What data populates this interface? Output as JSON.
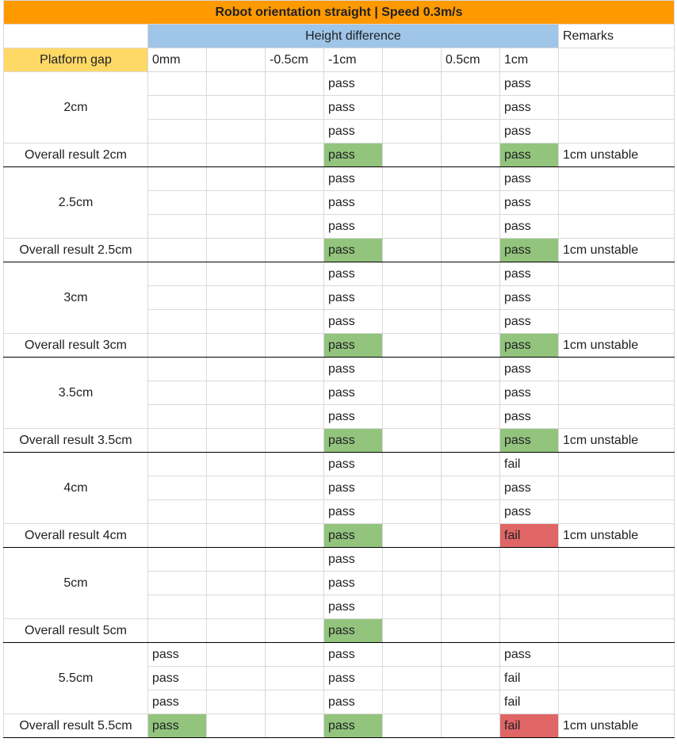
{
  "title": "Robot orientation straight | Speed 0.3m/s",
  "header": {
    "height_difference": "Height difference",
    "remarks": "Remarks",
    "platform_gap": "Platform gap",
    "columns": [
      "0mm",
      "",
      "-0.5cm",
      "-1cm",
      "",
      "0.5cm",
      "1cm"
    ]
  },
  "groups": [
    {
      "gap": "2cm",
      "rows": [
        [
          "",
          "",
          "",
          "pass",
          "",
          "",
          "pass"
        ],
        [
          "",
          "",
          "",
          "pass",
          "",
          "",
          "pass"
        ],
        [
          "",
          "",
          "",
          "pass",
          "",
          "",
          "pass"
        ]
      ],
      "overall": {
        "label": "Overall result 2cm",
        "cells": [
          "",
          "",
          "",
          "pass",
          "",
          "",
          "pass"
        ],
        "remark": "1cm unstable"
      }
    },
    {
      "gap": "2.5cm",
      "rows": [
        [
          "",
          "",
          "",
          "pass",
          "",
          "",
          "pass"
        ],
        [
          "",
          "",
          "",
          "pass",
          "",
          "",
          "pass"
        ],
        [
          "",
          "",
          "",
          "pass",
          "",
          "",
          "pass"
        ]
      ],
      "overall": {
        "label": "Overall result 2.5cm",
        "cells": [
          "",
          "",
          "",
          "pass",
          "",
          "",
          "pass"
        ],
        "remark": "1cm unstable"
      }
    },
    {
      "gap": "3cm",
      "rows": [
        [
          "",
          "",
          "",
          "pass",
          "",
          "",
          "pass"
        ],
        [
          "",
          "",
          "",
          "pass",
          "",
          "",
          "pass"
        ],
        [
          "",
          "",
          "",
          "pass",
          "",
          "",
          "pass"
        ]
      ],
      "overall": {
        "label": "Overall result 3cm",
        "cells": [
          "",
          "",
          "",
          "pass",
          "",
          "",
          "pass"
        ],
        "remark": "1cm unstable"
      }
    },
    {
      "gap": "3.5cm",
      "rows": [
        [
          "",
          "",
          "",
          "pass",
          "",
          "",
          "pass"
        ],
        [
          "",
          "",
          "",
          "pass",
          "",
          "",
          "pass"
        ],
        [
          "",
          "",
          "",
          "pass",
          "",
          "",
          "pass"
        ]
      ],
      "overall": {
        "label": "Overall result 3.5cm",
        "cells": [
          "",
          "",
          "",
          "pass",
          "",
          "",
          "pass"
        ],
        "remark": "1cm unstable"
      }
    },
    {
      "gap": "4cm",
      "rows": [
        [
          "",
          "",
          "",
          "pass",
          "",
          "",
          "fail"
        ],
        [
          "",
          "",
          "",
          "pass",
          "",
          "",
          "pass"
        ],
        [
          "",
          "",
          "",
          "pass",
          "",
          "",
          "pass"
        ]
      ],
      "overall": {
        "label": "Overall result 4cm",
        "cells": [
          "",
          "",
          "",
          "pass",
          "",
          "",
          "fail"
        ],
        "remark": "1cm unstable"
      }
    },
    {
      "gap": "5cm",
      "rows": [
        [
          "",
          "",
          "",
          "pass",
          "",
          "",
          ""
        ],
        [
          "",
          "",
          "",
          "pass",
          "",
          "",
          ""
        ],
        [
          "",
          "",
          "",
          "pass",
          "",
          "",
          ""
        ]
      ],
      "overall": {
        "label": "Overall result 5cm",
        "cells": [
          "",
          "",
          "",
          "pass",
          "",
          "",
          ""
        ],
        "remark": ""
      }
    },
    {
      "gap": "5.5cm",
      "rows": [
        [
          "pass",
          "",
          "",
          "pass",
          "",
          "",
          "pass"
        ],
        [
          "pass",
          "",
          "",
          "pass",
          "",
          "",
          "fail"
        ],
        [
          "pass",
          "",
          "",
          "pass",
          "",
          "",
          "fail"
        ]
      ],
      "overall": {
        "label": "Overall result 5.5cm",
        "cells": [
          "pass",
          "",
          "",
          "pass",
          "",
          "",
          "fail"
        ],
        "remark": "1cm unstable"
      }
    }
  ],
  "colors": {
    "title_bg": "#ff9900",
    "height_diff_bg": "#9fc5e8",
    "platform_gap_bg": "#ffd966",
    "pass_bg": "#93c47d",
    "fail_bg": "#e06666"
  }
}
